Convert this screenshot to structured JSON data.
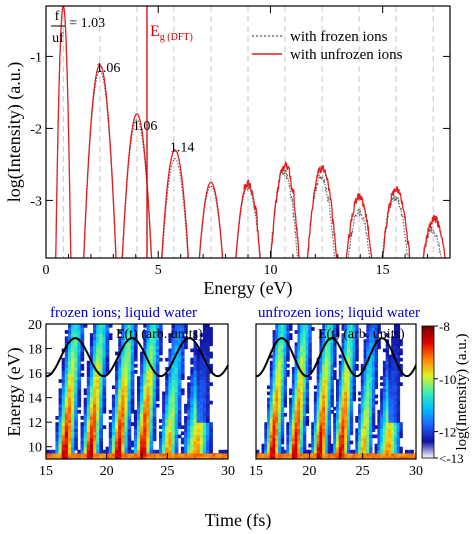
{
  "chart_data": [
    {
      "type": "line",
      "xlabel": "Energy (eV)",
      "ylabel": "log(Intensity) (a.u.)",
      "xlim": [
        0,
        18
      ],
      "ylim": [
        -3.8,
        -0.3
      ],
      "xticks": [
        "0",
        "5",
        "10",
        "15"
      ],
      "yticks": [
        "-1",
        "-2",
        "-3"
      ],
      "legend": [
        "with frozen ions",
        "with unfrozen ions"
      ],
      "legend_position": "top-right",
      "colors": {
        "frozen": "#555555",
        "unfrozen": "#e02020",
        "eg_line": "#d00000",
        "harmonic_grid": "#c8c8c8"
      },
      "eg_label": {
        "main": "E",
        "sub": "g (DFT)",
        "energy": 4.5
      },
      "ratio_label": {
        "numerator": "f",
        "denominator": "uf"
      },
      "harmonic_positions": [
        0.77,
        2.4,
        4.05,
        5.7,
        7.35,
        9.0,
        10.65,
        12.3,
        13.95,
        15.6,
        17.25
      ],
      "annotations": [
        {
          "text": "= 1.03",
          "x": 0.77,
          "y": -0.52
        },
        {
          "text": "1.06",
          "x": 2.4,
          "y": -1.15
        },
        {
          "text": "1.06",
          "x": 4.05,
          "y": -1.95
        },
        {
          "text": "1.14",
          "x": 5.7,
          "y": -2.25
        }
      ],
      "series": [
        {
          "name": "with frozen ions",
          "peaks": [
            [
              0.77,
              -0.3
            ],
            [
              2.4,
              -1.2
            ],
            [
              4.05,
              -1.88
            ],
            [
              5.75,
              -2.42
            ],
            [
              7.35,
              -2.8
            ],
            [
              9.0,
              -2.8
            ],
            [
              10.6,
              -2.6
            ],
            [
              12.25,
              -2.68
            ],
            [
              13.95,
              -3.15
            ],
            [
              15.55,
              -2.95
            ],
            [
              17.2,
              -3.4
            ]
          ]
        },
        {
          "name": "with unfrozen ions",
          "peaks": [
            [
              0.77,
              -0.3
            ],
            [
              2.4,
              -1.12
            ],
            [
              4.05,
              -1.8
            ],
            [
              5.75,
              -2.3
            ],
            [
              7.35,
              -2.75
            ],
            [
              9.0,
              -2.75
            ],
            [
              10.65,
              -2.5
            ],
            [
              12.3,
              -2.55
            ],
            [
              13.95,
              -2.95
            ],
            [
              15.6,
              -2.85
            ],
            [
              17.3,
              -3.25
            ]
          ]
        }
      ]
    },
    {
      "type": "heatmap",
      "title": "frozen ions; liquid water",
      "field_label": "E(t) (arb. units)",
      "xlabel": "Time (fs)",
      "ylabel": "Energy (eV)",
      "xlim": [
        15,
        30
      ],
      "ylim": [
        9,
        20
      ],
      "xticks": [
        "15",
        "20",
        "25",
        "30"
      ],
      "yticks": [
        "10",
        "12",
        "14",
        "16",
        "18",
        "20"
      ],
      "bursts_fs": [
        16.5,
        18.6,
        20.9,
        22.9,
        25.0,
        27.3
      ]
    },
    {
      "type": "heatmap",
      "title": "unfrozen ions; liquid water",
      "field_label": "E(t) (arb. units)",
      "xlabel": "Time (fs)",
      "xlim": [
        15,
        30
      ],
      "ylim": [
        9,
        20
      ],
      "xticks": [
        "15",
        "20",
        "25",
        "30"
      ],
      "bursts_fs": [
        16.5,
        18.6,
        20.9,
        22.9,
        25.0,
        27.3
      ]
    }
  ],
  "colorbar": {
    "label": "log(Intensity) (a.u.)",
    "ticks": [
      "-8",
      "-10",
      "-12",
      "<-13"
    ],
    "range": [
      -13,
      -8
    ],
    "colors": [
      "#ffffff",
      "#1010a0",
      "#2060ff",
      "#00c0ff",
      "#40f0b0",
      "#e0f020",
      "#ff8000",
      "#e00000",
      "#700000"
    ]
  },
  "shared_xlabel": "Time (fs)"
}
